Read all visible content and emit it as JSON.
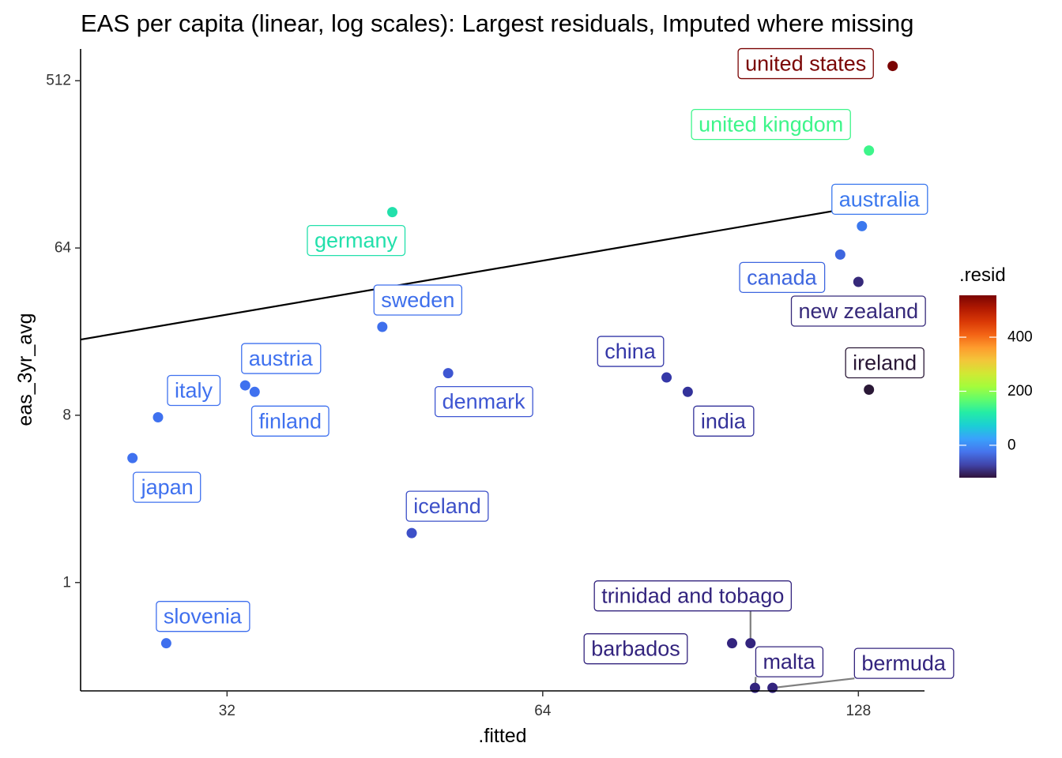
{
  "chart_data": {
    "type": "scatter",
    "title": "EAS per capita (linear, log scales): Largest residuals, Imputed where missing",
    "xlabel": ".fitted",
    "ylabel": "eas_3yr_avg",
    "x_scale": "log2",
    "y_scale": "log2",
    "xlim": [
      23.2,
      148
    ],
    "ylim": [
      0.26,
      760
    ],
    "x_ticks": [
      32,
      64,
      128
    ],
    "x_tick_labels": [
      "32",
      "64",
      "128"
    ],
    "y_ticks": [
      1,
      8,
      64,
      512
    ],
    "y_tick_labels": [
      "1",
      "8",
      "64",
      "512"
    ],
    "grid": false,
    "fit_line": {
      "x": [
        23.2,
        148
      ],
      "y": [
        20.5,
        123
      ]
    },
    "legend": {
      "title": ".resid",
      "placement": "right",
      "min": -120,
      "max": 555,
      "ticks": [
        0,
        200,
        400
      ],
      "tick_labels": [
        "0",
        "200",
        "400"
      ],
      "colors": [
        "#30123b",
        "#4145ab",
        "#4675ed",
        "#39a2fc",
        "#1bcfd4",
        "#24eca6",
        "#61fc6c",
        "#a4fc3b",
        "#d1e834",
        "#f3c63a",
        "#fe9b2d",
        "#f36315",
        "#d93806",
        "#b11901",
        "#7a0403"
      ]
    },
    "points": [
      {
        "label": "united states",
        "x": 138,
        "y": 615,
        "resid": 550,
        "color": "#7a0403"
      },
      {
        "label": "united kingdom",
        "x": 131,
        "y": 215,
        "resid": 180,
        "color": "#3df58a"
      },
      {
        "label": "australia",
        "x": 129,
        "y": 84,
        "resid": 8,
        "color": "#3b78ee"
      },
      {
        "label": "germany",
        "x": 46,
        "y": 100,
        "resid": 100,
        "color": "#22e0ab"
      },
      {
        "label": "canada",
        "x": 123,
        "y": 59,
        "resid": -12,
        "color": "#3e66df"
      },
      {
        "label": "new zealand",
        "x": 128,
        "y": 42,
        "resid": -70,
        "color": "#36297a"
      },
      {
        "label": "sweden",
        "x": 45,
        "y": 24,
        "resid": 5,
        "color": "#3e6fec"
      },
      {
        "label": "austria",
        "x": 33.3,
        "y": 11.6,
        "resid": 0,
        "color": "#3f71ef"
      },
      {
        "label": "finland",
        "x": 34,
        "y": 10.7,
        "resid": 0,
        "color": "#3f71ef"
      },
      {
        "label": "denmark",
        "x": 52,
        "y": 13.5,
        "resid": -25,
        "color": "#3e56d2"
      },
      {
        "label": "china",
        "x": 84,
        "y": 12.8,
        "resid": -55,
        "color": "#3538a8"
      },
      {
        "label": "india",
        "x": 88,
        "y": 10.7,
        "resid": -60,
        "color": "#33329a"
      },
      {
        "label": "ireland",
        "x": 131,
        "y": 11,
        "resid": -118,
        "color": "#2a1836"
      },
      {
        "label": "italy",
        "x": 27.5,
        "y": 7.8,
        "resid": 0,
        "color": "#3f71ef"
      },
      {
        "label": "japan",
        "x": 26,
        "y": 4.7,
        "resid": 0,
        "color": "#3f71ef"
      },
      {
        "label": "iceland",
        "x": 48,
        "y": 1.85,
        "resid": -20,
        "color": "#3d50c8"
      },
      {
        "label": "slovenia",
        "x": 28,
        "y": 0.47,
        "resid": 0,
        "color": "#3f6fee"
      },
      {
        "label": "trinidad and tobago",
        "x": 101,
        "y": 0.47,
        "resid": -88,
        "color": "#33247e"
      },
      {
        "label": "barbados",
        "x": 97,
        "y": 0.47,
        "resid": -88,
        "color": "#33247e"
      },
      {
        "label": "malta",
        "x": 102,
        "y": 0.27,
        "resid": -88,
        "color": "#33247e"
      },
      {
        "label": "bermuda",
        "x": 106,
        "y": 0.27,
        "resid": -88,
        "color": "#33247e"
      }
    ]
  }
}
